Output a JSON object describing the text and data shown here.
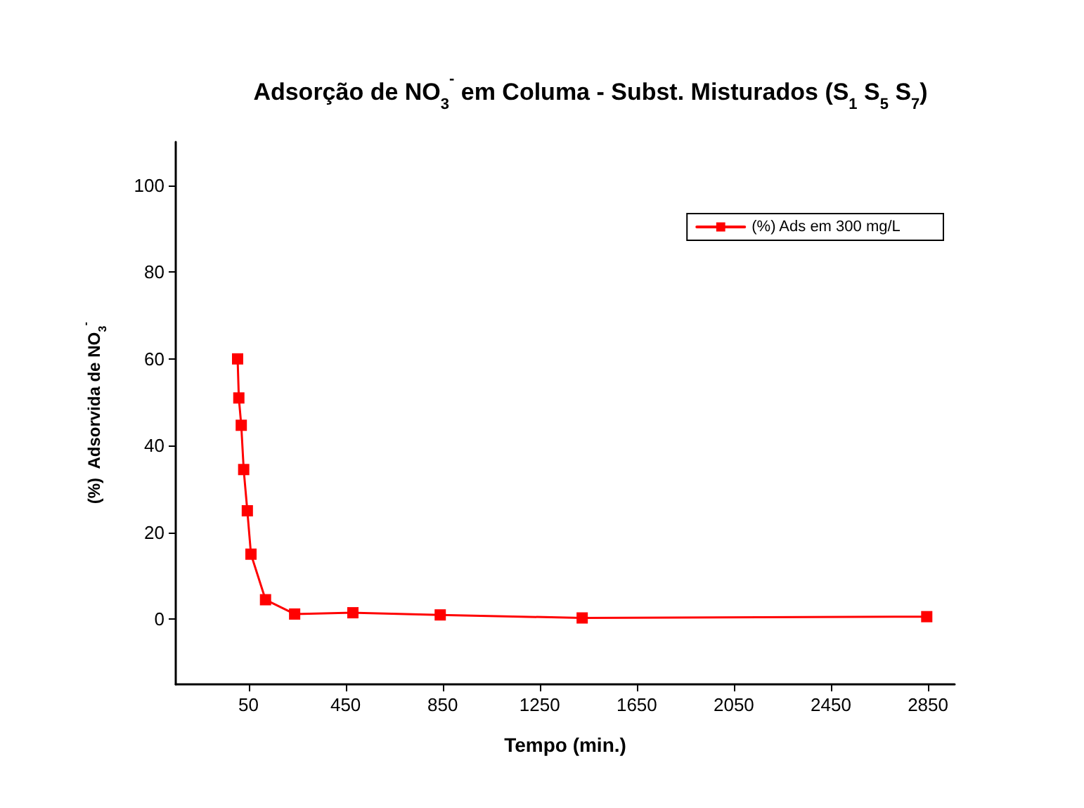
{
  "chart_data": {
    "type": "line",
    "title": "Adsorção de NO$_{3}$$^{-}$ em Columa - Subst. Misturados (S$_{1}$ S$_{5}$ S$_{7}$)",
    "xlabel": "Tempo (min.)",
    "ylabel": "(%)  Adsorvida de NO$_{3}$$^{-}$",
    "x": [
      5,
      10,
      20,
      30,
      45,
      60,
      120,
      240,
      480,
      840,
      1425,
      2845
    ],
    "series": [
      {
        "name": "(%) Ads em 300 mg/L",
        "color": "#ff0000",
        "values": [
          60,
          51,
          44.7,
          34.5,
          25,
          15,
          4.5,
          1.2,
          1.5,
          1.0,
          0.3,
          0.6
        ]
      }
    ],
    "xlim": [
      -250,
      2960
    ],
    "xticks": [
      50,
      450,
      850,
      1250,
      1650,
      2050,
      2450,
      2850
    ],
    "ylim": [
      -15,
      110
    ],
    "yticks": [
      0,
      20,
      40,
      60,
      80,
      100
    ],
    "grid": false,
    "legend": "top right",
    "marker": "square",
    "line_style": "solid"
  }
}
